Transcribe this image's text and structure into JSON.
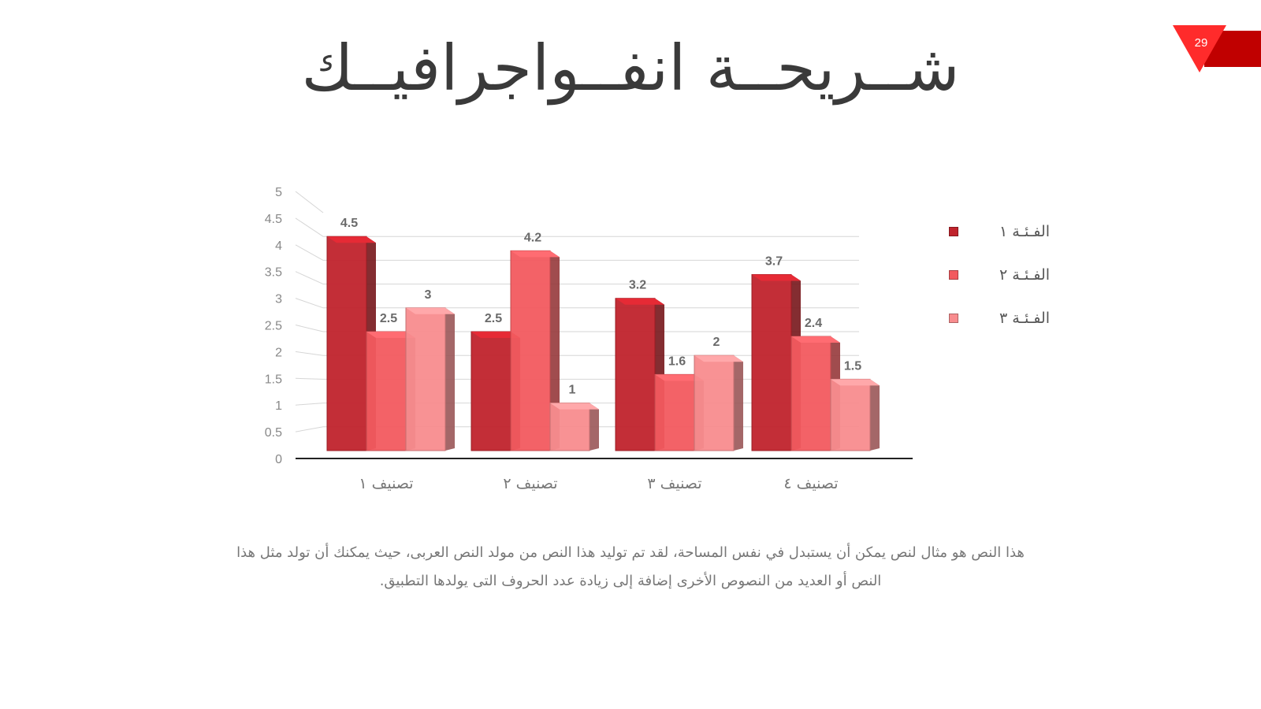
{
  "slide": {
    "title": "شــريحــة انفــواجرافيــك",
    "page_number": "29",
    "accent_color": "#c00000",
    "body_lines": [
      "هذا النص هو مثال لنص يمكن أن يستبدل في نفس المساحة، لقد تم توليد هذا النص من مولد النص العربى، حيث يمكنك أن تولد مثل هذا",
      "النص أو العديد من النصوص الأخرى إضافة إلى زيادة عدد الحروف التى يولدها التطبيق."
    ]
  },
  "chart_data": {
    "type": "bar",
    "style": "3d-clustered-column",
    "categories": [
      "تصنيف ١",
      "تصنيف ٢",
      "تصنيف ٣",
      "تصنيف ٤"
    ],
    "series": [
      {
        "name": "الفـئـة ١",
        "values": [
          4.5,
          2.5,
          3.2,
          3.7
        ],
        "color": "#c0232c"
      },
      {
        "name": "الفـئـة ٢",
        "values": [
          2.5,
          4.2,
          1.6,
          2.4
        ],
        "color": "#f25a5f"
      },
      {
        "name": "الفـئـة ٣",
        "values": [
          3,
          1,
          2,
          1.5
        ],
        "color": "#f88c8e"
      }
    ],
    "yticks": [
      "0",
      "0.5",
      "1",
      "1.5",
      "2",
      "2.5",
      "3",
      "3.5",
      "4",
      "4.5",
      "5"
    ],
    "ylim": [
      0,
      5
    ],
    "grid": true,
    "legend_position": "right",
    "data_labels": true
  }
}
